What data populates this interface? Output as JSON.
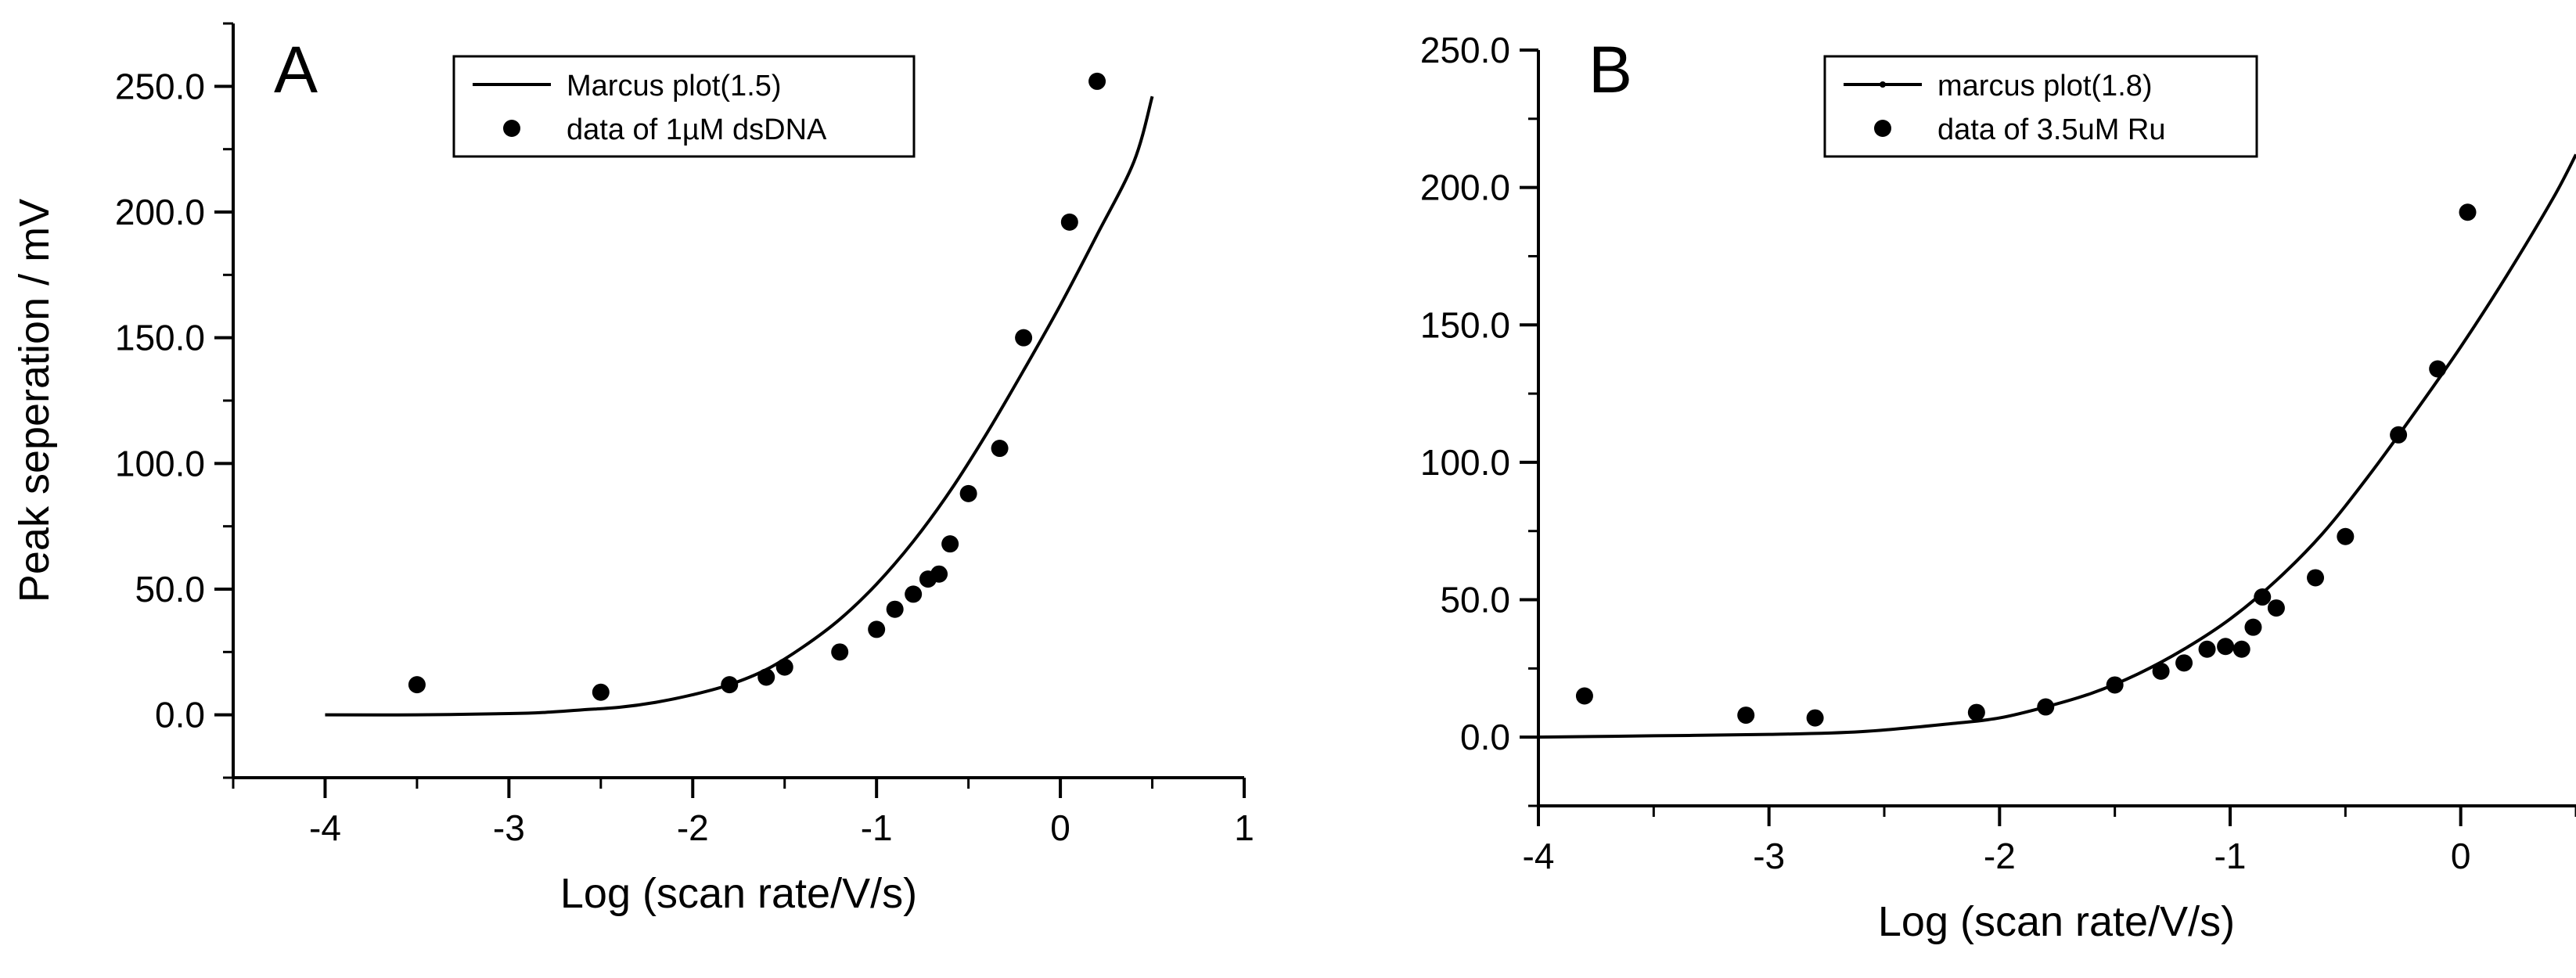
{
  "chart_data": [
    {
      "type": "scatter",
      "panel_label": "A",
      "xlabel": "Log (scan rate/V/s)",
      "ylabel": "Peak seperation / mV",
      "xlim": [
        -4.5,
        1
      ],
      "ylim": [
        -25,
        275
      ],
      "x_ticks": [
        -4,
        -3,
        -2,
        -1,
        0,
        1
      ],
      "x_tick_labels": [
        "-4",
        "-3",
        "-2",
        "-1",
        "0",
        "1"
      ],
      "y_ticks": [
        0,
        50,
        100,
        150,
        200,
        250
      ],
      "y_tick_labels": [
        "0.0",
        "50.0",
        "100.0",
        "150.0",
        "200.0",
        "250.0"
      ],
      "legend_position": "top-center",
      "legend": [
        "Marcus plot(1.5)",
        "data of 1µM dsDNA"
      ],
      "series": [
        {
          "name": "Marcus plot(1.5)",
          "kind": "line",
          "x": [
            -4.0,
            -3.5,
            -3.0,
            -2.8,
            -2.6,
            -2.4,
            -2.2,
            -2.0,
            -1.8,
            -1.6,
            -1.4,
            -1.2,
            -1.0,
            -0.8,
            -0.6,
            -0.4,
            -0.2,
            0.0,
            0.2,
            0.4,
            0.5
          ],
          "y": [
            0,
            0,
            0.5,
            1,
            2,
            3,
            5,
            8,
            12,
            18,
            27,
            38,
            52,
            69,
            89,
            112,
            137,
            163,
            191,
            220,
            246
          ]
        },
        {
          "name": "data of 1µM dsDNA",
          "kind": "scatter",
          "x": [
            -3.5,
            -2.5,
            -1.8,
            -1.6,
            -1.5,
            -1.2,
            -1.0,
            -0.9,
            -0.8,
            -0.72,
            -0.66,
            -0.6,
            -0.5,
            -0.33,
            -0.2,
            0.05,
            0.2
          ],
          "y": [
            12,
            9,
            12,
            15,
            19,
            25,
            34,
            42,
            48,
            54,
            56,
            68,
            88,
            106,
            150,
            196,
            252
          ]
        }
      ]
    },
    {
      "type": "scatter",
      "panel_label": "B",
      "xlabel": "Log (scan rate/V/s)",
      "ylabel": "",
      "xlim": [
        -4,
        0.5
      ],
      "ylim": [
        -25,
        250
      ],
      "x_ticks": [
        -4,
        -3,
        -2,
        -1,
        0
      ],
      "x_tick_labels": [
        "-4",
        "-3",
        "-2",
        "-1",
        "0"
      ],
      "y_ticks": [
        0,
        50,
        100,
        150,
        200,
        250
      ],
      "y_tick_labels": [
        "0.0",
        "50.0",
        "100.0",
        "150.0",
        "200.0",
        "250.0"
      ],
      "legend_position": "top-center",
      "legend": [
        "marcus plot(1.8)",
        "data of 3.5uM Ru"
      ],
      "series": [
        {
          "name": "marcus plot(1.8)",
          "kind": "line",
          "x": [
            -4.0,
            -3.5,
            -3.0,
            -2.6,
            -2.2,
            -2.0,
            -1.8,
            -1.6,
            -1.4,
            -1.2,
            -1.0,
            -0.8,
            -0.6,
            -0.4,
            -0.2,
            0.0,
            0.2,
            0.4,
            0.5
          ],
          "y": [
            0,
            0.5,
            1,
            2,
            5,
            7,
            11,
            16,
            23,
            32,
            43,
            57,
            74,
            95,
            118,
            142,
            168,
            196,
            212
          ]
        },
        {
          "name": "data of 3.5uM Ru",
          "kind": "scatter",
          "x": [
            -3.8,
            -3.1,
            -2.8,
            -2.1,
            -1.8,
            -1.5,
            -1.3,
            -1.2,
            -1.1,
            -1.02,
            -0.95,
            -0.9,
            -0.86,
            -0.8,
            -0.63,
            -0.5,
            -0.27,
            -0.1,
            0.03
          ],
          "y": [
            15,
            8,
            7,
            9,
            11,
            19,
            24,
            27,
            32,
            33,
            32,
            40,
            51,
            47,
            58,
            73,
            110,
            134,
            191
          ]
        }
      ]
    }
  ]
}
